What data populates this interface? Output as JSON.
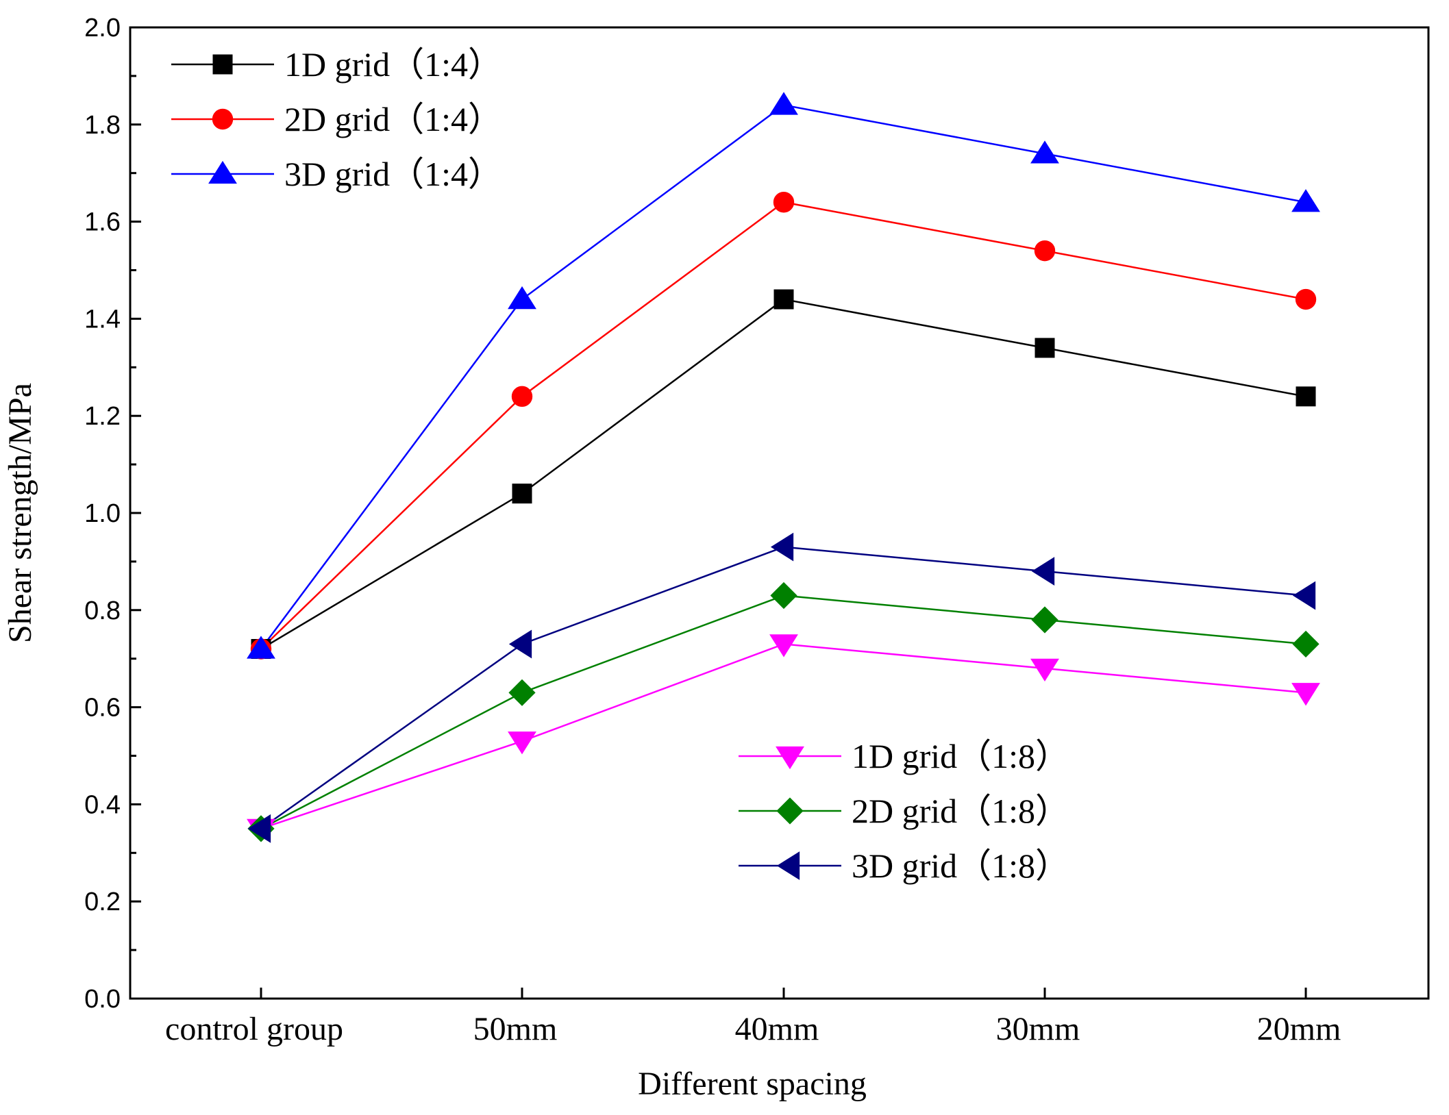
{
  "chart_data": {
    "type": "line",
    "title": "",
    "xlabel": "Different spacing",
    "ylabel": "Shear strength/MPa",
    "categories": [
      "control group",
      "50mm",
      "40mm",
      "30mm",
      "20mm"
    ],
    "ylim": [
      0.0,
      2.0
    ],
    "yticks": [
      "0.0",
      "0.2",
      "0.4",
      "0.6",
      "0.8",
      "1.0",
      "1.2",
      "1.4",
      "1.6",
      "1.8",
      "2.0"
    ],
    "grid": false,
    "series": [
      {
        "name": "1D grid（1:4）",
        "marker": "square",
        "color": "#000000",
        "values": [
          0.72,
          1.04,
          1.44,
          1.34,
          1.24
        ]
      },
      {
        "name": "2D grid（1:4）",
        "marker": "circle",
        "color": "#ff0000",
        "values": [
          0.72,
          1.24,
          1.64,
          1.54,
          1.44
        ]
      },
      {
        "name": "3D grid（1:4）",
        "marker": "triangle-up",
        "color": "#0000ff",
        "values": [
          0.72,
          1.44,
          1.84,
          1.74,
          1.64
        ]
      },
      {
        "name": "1D grid（1:8）",
        "marker": "triangle-down",
        "color": "#ff00ff",
        "values": [
          0.35,
          0.53,
          0.73,
          0.68,
          0.63
        ]
      },
      {
        "name": "2D grid（1:8）",
        "marker": "diamond",
        "color": "#008000",
        "values": [
          0.35,
          0.63,
          0.83,
          0.78,
          0.73
        ]
      },
      {
        "name": "3D grid（1:8）",
        "marker": "triangle-left",
        "color": "#000080",
        "values": [
          0.35,
          0.73,
          0.93,
          0.88,
          0.83
        ]
      }
    ],
    "legends": [
      {
        "placement": "top-left",
        "series_indices": [
          0,
          1,
          2
        ]
      },
      {
        "placement": "lower-right",
        "series_indices": [
          3,
          4,
          5
        ]
      }
    ]
  }
}
